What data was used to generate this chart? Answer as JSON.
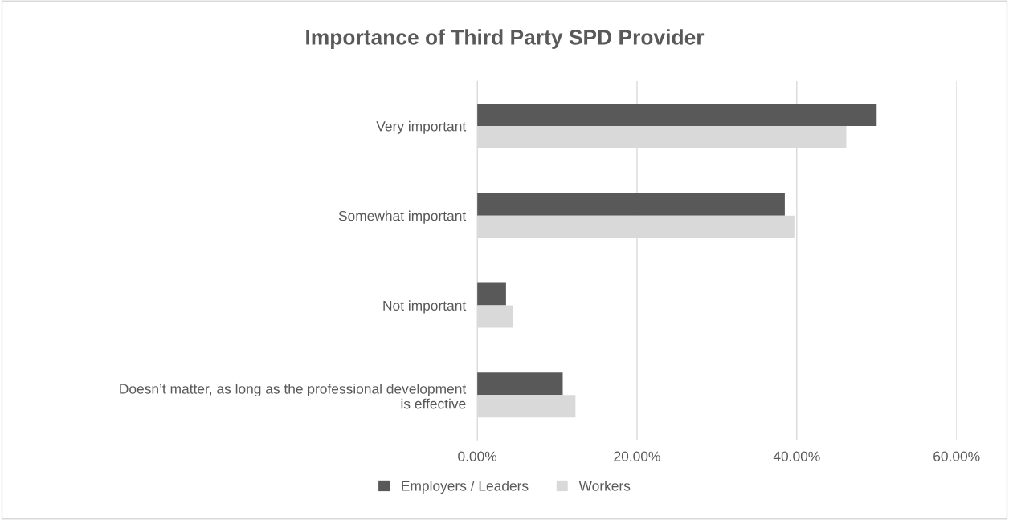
{
  "chart_data": {
    "type": "bar",
    "orientation": "horizontal",
    "title": "Importance of Third Party SPD Provider",
    "categories": [
      "Very important",
      "Somewhat important",
      "Not important",
      "Doesn’t matter, as long as the professional development\nis effective"
    ],
    "series": [
      {
        "name": "Employers / Leaders",
        "color": "#595959",
        "values": [
          50.0,
          38.5,
          3.6,
          10.7
        ]
      },
      {
        "name": "Workers",
        "color": "#d9d9d9",
        "values": [
          46.2,
          39.7,
          4.5,
          12.3
        ]
      }
    ],
    "xlim": [
      0,
      60
    ],
    "xticks": [
      {
        "value": 0,
        "label": "0.00%"
      },
      {
        "value": 20,
        "label": "20.00%"
      },
      {
        "value": 40,
        "label": "40.00%"
      },
      {
        "value": 60,
        "label": "60.00%"
      }
    ],
    "grid": "x",
    "legend": "bottom"
  }
}
